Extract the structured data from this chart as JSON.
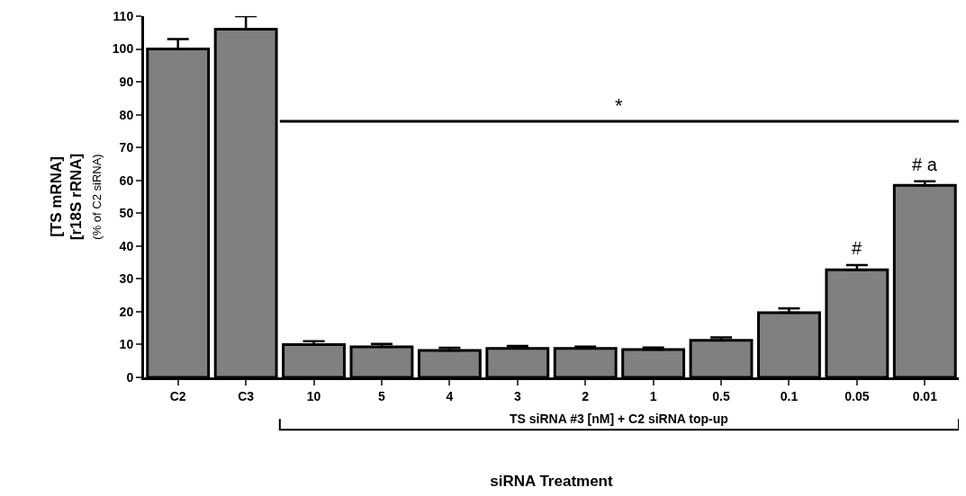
{
  "chart_data": {
    "type": "bar",
    "xlabel": "siRNA Treatment",
    "ylabel": "[TS mRNA]\n[r18S rRNA]\n(% of C2 siRNA)",
    "categories": [
      "C2",
      "C3",
      "10",
      "5",
      "4",
      "3",
      "2",
      "1",
      "0.5",
      "0.1",
      "0.05",
      "0.01"
    ],
    "values": [
      100,
      106,
      10,
      9.3,
      8.2,
      8.8,
      8.8,
      8.5,
      11.3,
      19.7,
      32.8,
      58.5
    ],
    "errors": [
      [
        100,
        103
      ],
      [
        106,
        110
      ],
      [
        10,
        11
      ],
      [
        9.3,
        10.2
      ],
      [
        8.2,
        9
      ],
      [
        8.8,
        9.6
      ],
      [
        8.8,
        9.4
      ],
      [
        8.5,
        9.1
      ],
      [
        11.3,
        12.2
      ],
      [
        19.7,
        21
      ],
      [
        32.8,
        34.2
      ],
      [
        58.5,
        59.7
      ]
    ],
    "color": "#808080",
    "ylim": [
      0,
      110
    ],
    "yticks": [
      0,
      10,
      20,
      30,
      40,
      50,
      60,
      70,
      80,
      90,
      100,
      110
    ],
    "ref_lines": [
      {
        "axis": "y",
        "value": 78,
        "label": "*",
        "color": "#000000"
      }
    ],
    "annotations": [
      "#",
      "# a",
      "TS siRNA #3 [nM] + C2 siRNA top-up"
    ]
  }
}
